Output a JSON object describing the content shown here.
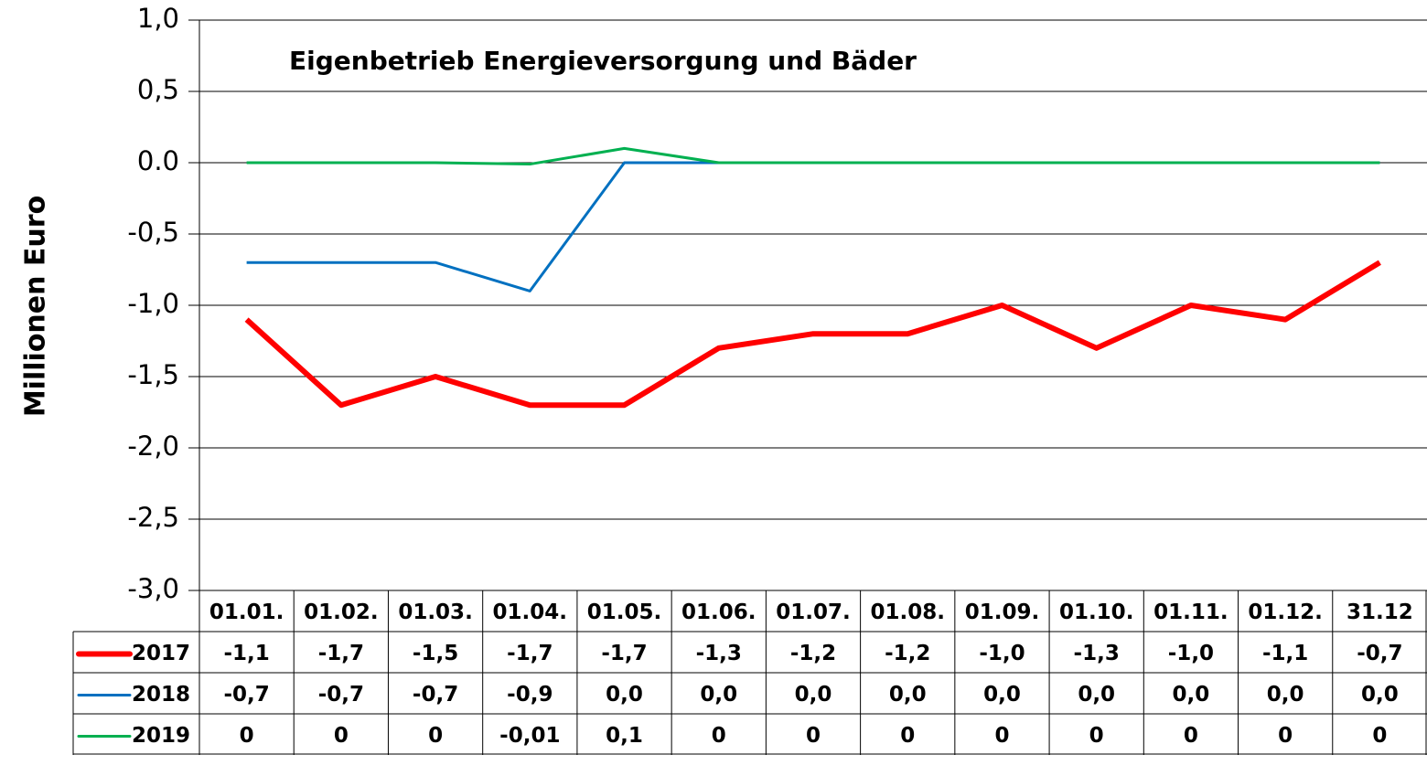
{
  "chart_data": {
    "type": "line",
    "title": "Eigenbetrieb Energieversorgung und Bäder",
    "y_label": "Millionen Euro",
    "categories": [
      "01.01.",
      "01.02.",
      "01.03.",
      "01.04.",
      "01.05.",
      "01.06.",
      "01.07.",
      "01.08.",
      "01.09.",
      "01.10.",
      "01.11.",
      "01.12.",
      "31.12"
    ],
    "series": [
      {
        "name": "2017",
        "color": "#ff0000",
        "values": [
          -1.1,
          -1.7,
          -1.5,
          -1.7,
          -1.7,
          -1.3,
          -1.2,
          -1.2,
          -1.0,
          -1.3,
          -1.0,
          -1.1,
          -0.7
        ],
        "value_labels": [
          "-1,1",
          "-1,7",
          "-1,5",
          "-1,7",
          "-1,7",
          "-1,3",
          "-1,2",
          "-1,2",
          "-1,0",
          "-1,3",
          "-1,0",
          "-1,1",
          "-0,7"
        ]
      },
      {
        "name": "2018",
        "color": "#0070c0",
        "values": [
          -0.7,
          -0.7,
          -0.7,
          -0.9,
          0,
          0,
          0,
          0,
          0,
          0,
          0,
          0,
          0
        ],
        "value_labels": [
          "-0,7",
          "-0,7",
          "-0,7",
          "-0,9",
          "0,0",
          "0,0",
          "0,0",
          "0,0",
          "0,0",
          "0,0",
          "0,0",
          "0,0",
          "0,0"
        ]
      },
      {
        "name": "2019",
        "color": "#00b050",
        "values": [
          0,
          0,
          0,
          -0.01,
          0.1,
          0,
          0,
          0,
          0,
          0,
          0,
          0,
          0
        ],
        "value_labels": [
          "0",
          "0",
          "0",
          "-0,01",
          "0,1",
          "0",
          "0",
          "0",
          "0",
          "0",
          "0",
          "0",
          "0"
        ]
      }
    ],
    "ylim": [
      -3,
      1
    ],
    "yticks": [
      {
        "value": 1,
        "label": "1,0"
      },
      {
        "value": 0.5,
        "label": "0,5"
      },
      {
        "value": 0,
        "label": "0.0"
      },
      {
        "value": -0.5,
        "label": "-0,5"
      },
      {
        "value": -1,
        "label": "-1,0"
      },
      {
        "value": -1.5,
        "label": "-1,5"
      },
      {
        "value": -2,
        "label": "-2,0"
      },
      {
        "value": -2.5,
        "label": "-2,5"
      },
      {
        "value": -3,
        "label": "-3,0"
      }
    ],
    "grid": true
  }
}
